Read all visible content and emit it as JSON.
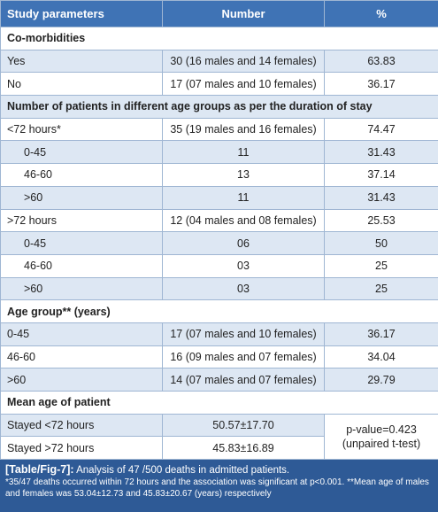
{
  "table": {
    "header": [
      "Study parameters",
      "Number",
      "%"
    ],
    "rows": [
      [
        "Co-morbidities"
      ],
      [
        "Yes",
        "30 (16 males and 14 females)",
        "63.83"
      ],
      [
        "No",
        "17 (07 males and 10 females)",
        "36.17"
      ],
      [
        "Number of patients in different age groups as per the duration of stay"
      ],
      [
        "<72 hours*",
        "35 (19 males and 16 females)",
        "74.47"
      ],
      [
        "0-45",
        "11",
        "31.43"
      ],
      [
        "46-60",
        "13",
        "37.14"
      ],
      [
        ">60",
        "11",
        "31.43"
      ],
      [
        ">72 hours",
        "12 (04 males and 08 females)",
        "25.53"
      ],
      [
        "0-45",
        "06",
        "50"
      ],
      [
        "46-60",
        "03",
        "25"
      ],
      [
        ">60",
        "03",
        "25"
      ],
      [
        "Age group** (years)"
      ],
      [
        "0-45",
        "17 (07 males and 10 females)",
        "36.17"
      ],
      [
        "46-60",
        "16 (09 males and 07 females)",
        "34.04"
      ],
      [
        ">60",
        "14 (07 males and 07 females)",
        "29.79"
      ],
      [
        "Mean age of patient"
      ],
      [
        "Stayed <72 hours",
        "50.57±17.70",
        [
          "p-value=0.423",
          "(unpaired t-test)"
        ]
      ],
      [
        "Stayed >72 hours",
        "45.83±16.89"
      ]
    ]
  },
  "caption": {
    "label": "[Table/Fig-7]:",
    "text": "Analysis of 47 /500 deaths in admitted patients.",
    "footnote": "*35/47 deaths occurred within 72 hours and the association was significant at p<0.001. **Mean age of males and females was 53.04±12.73 and 45.83±20.67 (years) respectively"
  }
}
